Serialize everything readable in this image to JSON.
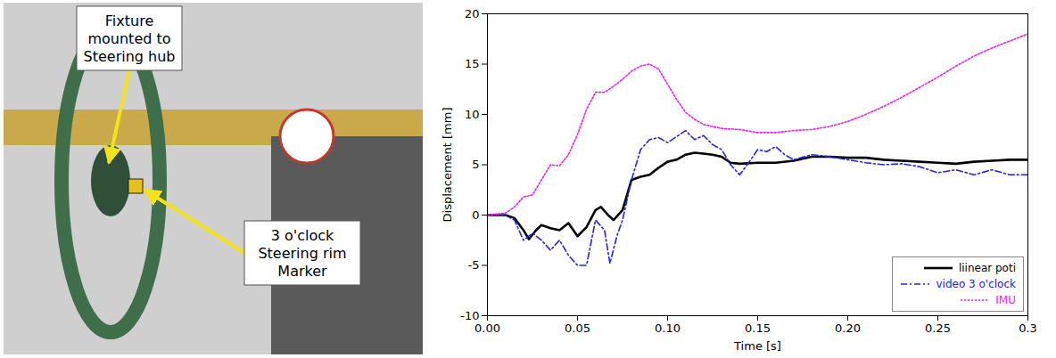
{
  "chart_data": {
    "type": "line",
    "annotations": [
      "Fixture mounted to Steering hub",
      "3 o'clock Steering rim Marker"
    ],
    "xlabel": "Time [s]",
    "ylabel": "Displacement [mm]",
    "xlim": [
      0,
      0.3
    ],
    "xticks": [
      {
        "value": 0,
        "label": "0.00"
      },
      {
        "value": 0.05,
        "label": "0.05"
      },
      {
        "value": 0.1,
        "label": "0.10"
      },
      {
        "value": 0.15,
        "label": "0.15"
      },
      {
        "value": 0.2,
        "label": "0.20"
      },
      {
        "value": 0.25,
        "label": "0.25"
      },
      0.3
    ],
    "ylim": [
      -10,
      20
    ],
    "yticks": [
      -10,
      -5,
      0,
      5,
      10,
      15,
      20
    ],
    "grid": false,
    "legend": "lower right",
    "series": [
      {
        "name": "liinear poti",
        "color": "#000000",
        "line_style": "solid",
        "x": [
          0,
          0.01,
          0.015,
          0.02,
          0.023,
          0.027,
          0.03,
          0.035,
          0.04,
          0.045,
          0.05,
          0.055,
          0.06,
          0.063,
          0.067,
          0.07,
          0.075,
          0.08,
          0.085,
          0.09,
          0.095,
          0.1,
          0.105,
          0.11,
          0.115,
          0.12,
          0.125,
          0.13,
          0.135,
          0.14,
          0.15,
          0.16,
          0.17,
          0.18,
          0.19,
          0.2,
          0.21,
          0.22,
          0.23,
          0.24,
          0.25,
          0.26,
          0.27,
          0.28,
          0.29,
          0.3
        ],
        "values": [
          0,
          0,
          -0.3,
          -1.5,
          -2.4,
          -1.5,
          -1.0,
          -1.3,
          -1.5,
          -0.8,
          -2.1,
          -1.2,
          0.5,
          0.8,
          0,
          -0.5,
          0.5,
          3.5,
          3.8,
          4.0,
          4.7,
          5.3,
          5.5,
          6.0,
          6.2,
          6.1,
          6.0,
          5.8,
          5.2,
          5.1,
          5.2,
          5.2,
          5.4,
          5.8,
          5.8,
          5.7,
          5.7,
          5.5,
          5.4,
          5.3,
          5.2,
          5.1,
          5.3,
          5.4,
          5.5,
          5.5
        ]
      },
      {
        "name": "video 3 o'clock",
        "color": "#2222ee",
        "line_style": "dashdot",
        "x": [
          0,
          0.01,
          0.015,
          0.02,
          0.025,
          0.03,
          0.035,
          0.04,
          0.045,
          0.05,
          0.055,
          0.06,
          0.065,
          0.068,
          0.072,
          0.075,
          0.08,
          0.085,
          0.09,
          0.095,
          0.1,
          0.105,
          0.11,
          0.115,
          0.12,
          0.125,
          0.13,
          0.135,
          0.14,
          0.145,
          0.15,
          0.155,
          0.16,
          0.165,
          0.17,
          0.18,
          0.19,
          0.2,
          0.21,
          0.22,
          0.23,
          0.24,
          0.25,
          0.26,
          0.27,
          0.28,
          0.29,
          0.3
        ],
        "values": [
          0,
          0,
          -0.5,
          -2.5,
          -1.8,
          -2.5,
          -3.5,
          -2.5,
          -4.0,
          -5.0,
          -5.0,
          -0.5,
          -1.5,
          -4.8,
          -2.0,
          -0.5,
          3.5,
          6.5,
          7.5,
          7.7,
          7.2,
          7.8,
          8.4,
          7.5,
          7.9,
          7.0,
          6.5,
          5.0,
          4.0,
          5.2,
          6.5,
          6.3,
          6.8,
          6.0,
          5.5,
          6.0,
          5.8,
          5.5,
          5.2,
          5.0,
          5.1,
          4.8,
          4.2,
          4.5,
          4.0,
          4.5,
          4.0,
          4.0
        ]
      },
      {
        "name": "IMU",
        "color": "#ee22ee",
        "line_style": "dotted",
        "x": [
          0,
          0.01,
          0.015,
          0.02,
          0.025,
          0.03,
          0.035,
          0.04,
          0.045,
          0.05,
          0.055,
          0.06,
          0.065,
          0.07,
          0.075,
          0.08,
          0.085,
          0.09,
          0.095,
          0.1,
          0.105,
          0.11,
          0.115,
          0.12,
          0.13,
          0.14,
          0.15,
          0.16,
          0.17,
          0.18,
          0.19,
          0.2,
          0.21,
          0.22,
          0.23,
          0.24,
          0.25,
          0.26,
          0.27,
          0.28,
          0.29,
          0.3
        ],
        "values": [
          0,
          0.2,
          0.8,
          1.8,
          2.0,
          3.5,
          5.0,
          4.9,
          6.0,
          8.0,
          10.5,
          12.2,
          12.2,
          12.8,
          13.5,
          14.3,
          14.8,
          15.0,
          14.5,
          13.0,
          11.5,
          10.2,
          9.5,
          9.0,
          8.6,
          8.5,
          8.2,
          8.2,
          8.4,
          8.5,
          8.8,
          9.3,
          10.0,
          10.8,
          11.7,
          12.7,
          13.7,
          14.8,
          15.8,
          16.6,
          17.3,
          18.0
        ]
      }
    ]
  }
}
